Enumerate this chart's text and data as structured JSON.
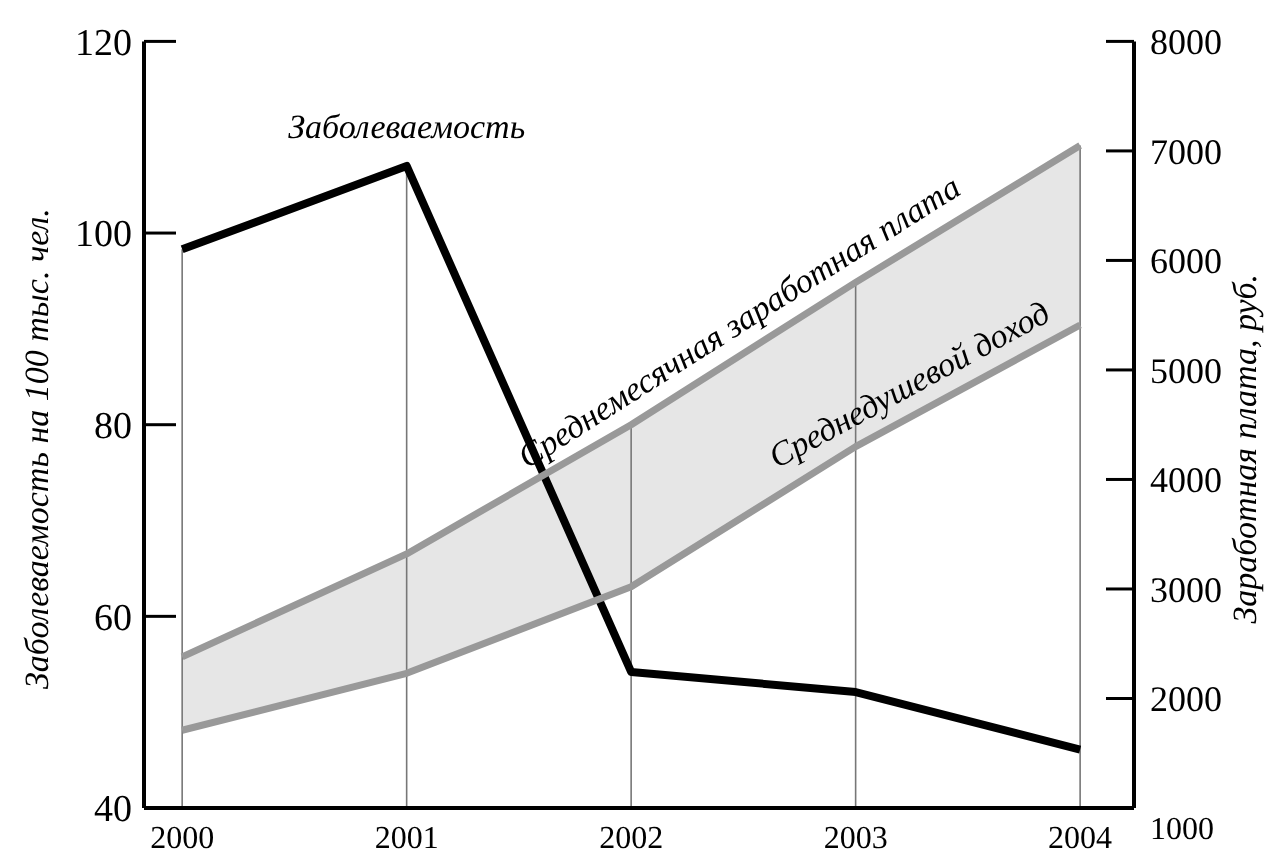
{
  "chart_data": {
    "type": "line",
    "ylabel": "Заболеваемость на 100 тыс. чел.",
    "y2label": "Заработная плата, руб.",
    "x": [
      2000,
      2001,
      2002,
      2003,
      2004
    ],
    "xlim": [
      1999.83,
      2004.24
    ],
    "xticks": [
      2000,
      2001,
      2002,
      2003,
      2004
    ],
    "ylim": [
      40,
      120
    ],
    "yticks": [
      40,
      60,
      80,
      100,
      120
    ],
    "y2lim": [
      1000,
      8000
    ],
    "y2ticks": [
      1000,
      2000,
      3000,
      4000,
      5000,
      6000,
      7000,
      8000
    ],
    "grid": "x",
    "marker": "none",
    "line_style": "solid",
    "series": [
      {
        "name": "Заболеваемость",
        "color": "#000000",
        "values": [
          98.3,
          107,
          54.2,
          52.1,
          46.1
        ]
      },
      {
        "name": "Среднемесячная заработная плата",
        "color": "#999999",
        "axis": "y2",
        "values": [
          2380,
          3320,
          4500,
          5800,
          7050
        ],
        "lower": [
          1710,
          2230,
          3020,
          4300,
          5410
        ],
        "upper": [
          2380,
          3320,
          4500,
          5800,
          7050
        ]
      },
      {
        "name": "Среднедушевой доход",
        "color": "#999999",
        "axis": "y2",
        "values": [
          1710,
          2230,
          3020,
          4300,
          5410
        ]
      }
    ]
  }
}
